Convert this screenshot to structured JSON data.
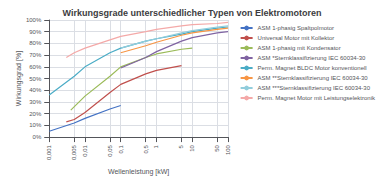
{
  "chart_data": {
    "type": "line",
    "title": "Wirkungsgrade unterschiedlicher Typen von Elektromotoren",
    "xlabel": "Wellenleistung [kW]",
    "ylabel": "Wirkungsgrad [%]",
    "log": "x",
    "grid": true,
    "legend": "right",
    "xlim": [
      0.001,
      100
    ],
    "xticks": [
      {
        "value": 0.001,
        "label": "0,001"
      },
      {
        "value": 0.005,
        "label": "0,005"
      },
      {
        "value": 0.01,
        "label": "0,01"
      },
      {
        "value": 0.05,
        "label": "0,05"
      },
      {
        "value": 0.1,
        "label": "0,1"
      },
      {
        "value": 0.5,
        "label": "0,5"
      },
      1,
      5,
      10,
      50,
      100
    ],
    "ylim": [
      0,
      100
    ],
    "yticks": [
      {
        "value": 0,
        "label": "0%"
      },
      {
        "value": 10,
        "label": "10%"
      },
      {
        "value": 20,
        "label": "20%"
      },
      {
        "value": 30,
        "label": "30%"
      },
      {
        "value": 40,
        "label": "40%"
      },
      {
        "value": 50,
        "label": "50%"
      },
      {
        "value": 60,
        "label": "60%"
      },
      {
        "value": 70,
        "label": "70%"
      },
      {
        "value": 80,
        "label": "80%"
      },
      {
        "value": 90,
        "label": "90%"
      },
      {
        "value": 100,
        "label": "100%"
      }
    ],
    "series": [
      {
        "name": "ASM 1-phasig Spaltpolmotor",
        "color": "#4472c4",
        "x": [
          0.001,
          0.005,
          0.01,
          0.05,
          0.1
        ],
        "values": [
          5,
          12,
          16,
          24,
          27
        ]
      },
      {
        "name": "Universal Motor mit Kollektor",
        "color": "#c0504d",
        "x": [
          0.003,
          0.005,
          0.01,
          0.05,
          0.1,
          0.5,
          1,
          5
        ],
        "values": [
          13,
          15,
          21,
          38,
          45,
          54,
          57,
          61
        ]
      },
      {
        "name": "ASM 1-phasig mit Kondensator",
        "color": "#9bbb59",
        "x": [
          0.004,
          0.01,
          0.05,
          0.1,
          0.5,
          1,
          5,
          10
        ],
        "values": [
          23,
          35,
          52,
          60,
          68,
          71,
          75,
          76
        ]
      },
      {
        "name": "ASM *Sternklassifizierung IEC 60034-30",
        "color": "#8064a2",
        "x": [
          0.1,
          0.5,
          1,
          5,
          10,
          50,
          100
        ],
        "values": [
          59,
          68,
          73,
          82,
          85,
          89,
          90
        ]
      },
      {
        "name": "Perm. Magnet BLDC Motor konventionell",
        "color": "#4bacc6",
        "x": [
          0.001,
          0.005,
          0.01,
          0.05,
          0.1,
          0.5,
          1,
          5,
          10,
          50,
          100
        ],
        "values": [
          36,
          52,
          60,
          72,
          76,
          82,
          84,
          88,
          90,
          93,
          94
        ]
      },
      {
        "name": "ASM **Sternklassifizierung IEC 60034-30",
        "color": "#f79646",
        "x": [
          0.1,
          0.5,
          1,
          5,
          10,
          50,
          100
        ],
        "values": [
          72,
          78,
          81,
          87,
          89,
          92,
          93
        ]
      },
      {
        "name": "ASM ***Sternklassifizierung IEC 60034-30",
        "color": "#92cddc",
        "x": [
          0.1,
          0.5,
          1,
          5,
          10,
          50,
          100
        ],
        "values": [
          76,
          82,
          84,
          89,
          91,
          94,
          95
        ]
      },
      {
        "name": "Perm. Magnet Motor mit Leistungselektronik",
        "color": "#f4a9a8",
        "x": [
          0.003,
          0.005,
          0.01,
          0.05,
          0.1,
          0.5,
          1,
          5,
          10,
          50,
          100
        ],
        "values": [
          68,
          72,
          76,
          83,
          86,
          90,
          92,
          95,
          96,
          97,
          98
        ]
      }
    ]
  }
}
